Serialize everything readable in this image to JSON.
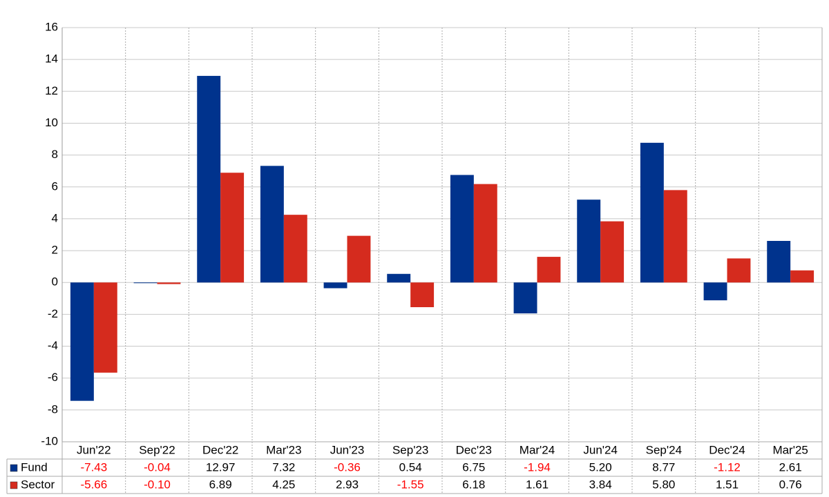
{
  "chart_data": {
    "type": "bar",
    "categories": [
      "Jun'22",
      "Sep'22",
      "Dec'22",
      "Mar'23",
      "Jun'23",
      "Sep'23",
      "Dec'23",
      "Mar'24",
      "Jun'24",
      "Sep'24",
      "Dec'24",
      "Mar'25"
    ],
    "series": [
      {
        "name": "Fund",
        "color": "#00338d",
        "values": [
          -7.43,
          -0.04,
          12.97,
          7.32,
          -0.36,
          0.54,
          6.75,
          -1.94,
          5.2,
          8.77,
          -1.12,
          2.61
        ],
        "value_labels": [
          "-7.43",
          "-0.04",
          "12.97",
          "7.32",
          "-0.36",
          "0.54",
          "6.75",
          "-1.94",
          "5.20",
          "8.77",
          "-1.12",
          "2.61"
        ]
      },
      {
        "name": "Sector",
        "color": "#d52b1e",
        "values": [
          -5.66,
          -0.1,
          6.89,
          4.25,
          2.93,
          -1.55,
          6.18,
          1.61,
          3.84,
          5.8,
          1.51,
          0.76
        ],
        "value_labels": [
          "-5.66",
          "-0.10",
          "6.89",
          "4.25",
          "2.93",
          "-1.55",
          "6.18",
          "1.61",
          "3.84",
          "5.80",
          "1.51",
          "0.76"
        ]
      }
    ],
    "ylim": [
      -10,
      16
    ],
    "yticks": [
      -10,
      -8,
      -6,
      -4,
      -2,
      0,
      2,
      4,
      6,
      8,
      10,
      12,
      14,
      16
    ],
    "grid": true,
    "negative_label_color": "#ff0000"
  }
}
